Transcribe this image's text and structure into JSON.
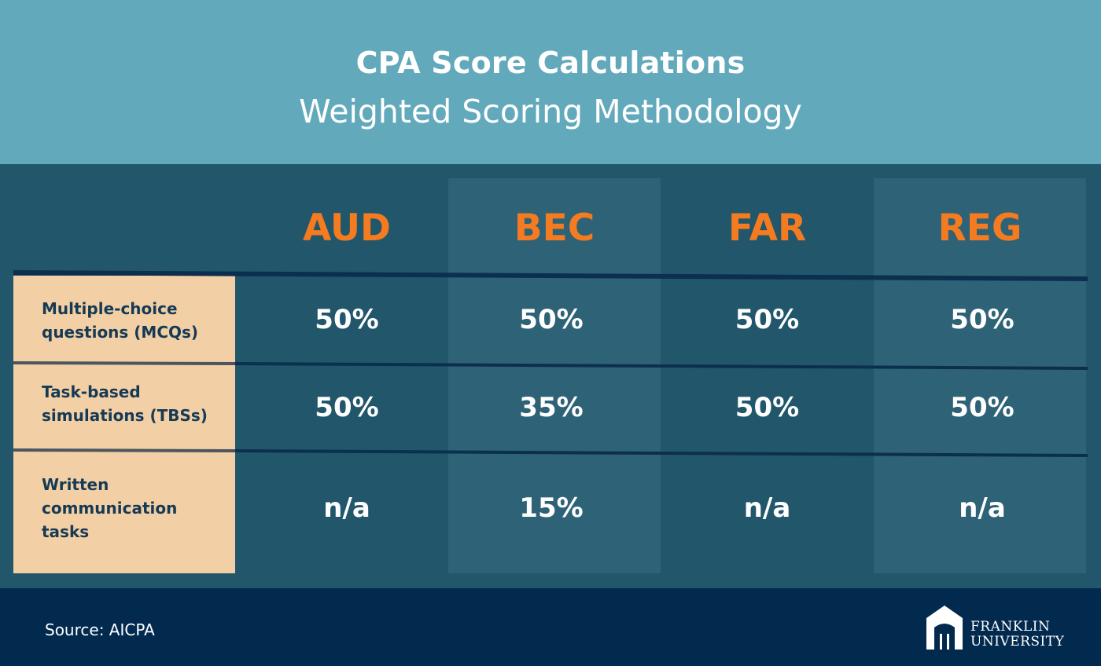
{
  "header": {
    "title": "CPA Score Calculations",
    "subtitle": "Weighted Scoring Methodology"
  },
  "table": {
    "columns": [
      "AUD",
      "BEC",
      "FAR",
      "REG"
    ],
    "rows": [
      {
        "label": "Multiple-choice questions (MCQs)",
        "values": [
          "50%",
          "50%",
          "50%",
          "50%"
        ]
      },
      {
        "label": "Task-based simulations (TBSs)",
        "values": [
          "50%",
          "35%",
          "50%",
          "50%"
        ]
      },
      {
        "label": "Written communication tasks",
        "values": [
          "n/a",
          "15%",
          "n/a",
          "n/a"
        ]
      }
    ]
  },
  "footer": {
    "source": "Source: AICPA",
    "logo_line1": "FRANKLIN",
    "logo_line2": "UNIVERSITY",
    "logo_icon": "franklin-arch-logo-icon"
  },
  "colors": {
    "header_bg": "#62a9bb",
    "table_bg": "#21566b",
    "column_shade": "#2e6276",
    "accent_orange": "#f47b20",
    "label_bg": "#f2cfa5",
    "footer_bg": "#022a4f"
  }
}
